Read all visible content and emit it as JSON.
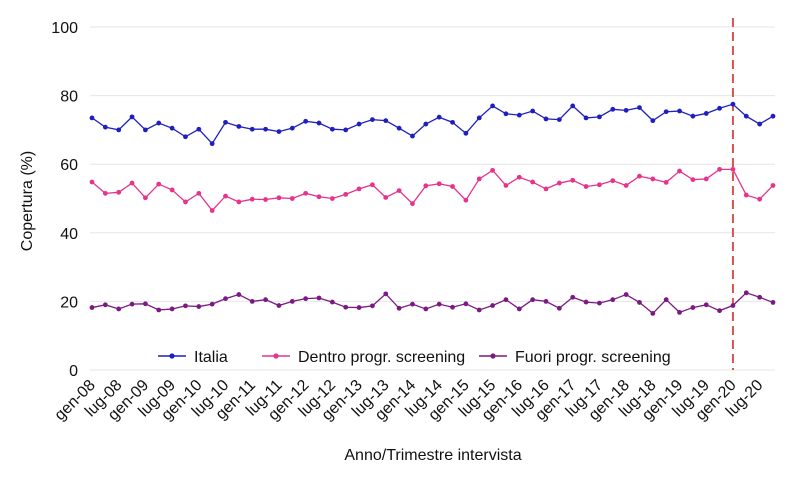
{
  "chart_data": {
    "type": "line",
    "xlabel": "Anno/Trimestre intervista",
    "ylabel": "Copertura (%)",
    "ylim": [
      0,
      100
    ],
    "yticks": [
      0,
      20,
      40,
      60,
      80,
      100
    ],
    "grid": "horizontal",
    "legend_position": "bottom-inside",
    "x_tick_labels": [
      "gen-08",
      "lug-08",
      "gen-09",
      "lug-09",
      "gen-10",
      "lug-10",
      "gen-11",
      "lug-11",
      "gen-12",
      "lug-12",
      "gen-13",
      "lug-13",
      "gen-14",
      "lug-14",
      "gen-15",
      "lug-15",
      "gen-16",
      "lug-16",
      "gen-17",
      "lug-17",
      "gen-18",
      "lug-18",
      "gen-19",
      "lug-19",
      "gen-20",
      "lug-20"
    ],
    "num_quarters": 52,
    "reference_line": {
      "at_label": "gen-20",
      "color": "#d9534f",
      "style": "dashed"
    },
    "series": [
      {
        "name": "Italia",
        "color": "#1f1fbf",
        "values": [
          73.5,
          70.8,
          70,
          73.8,
          70,
          72,
          70.5,
          68,
          70.2,
          66,
          72.2,
          71,
          70.2,
          70.2,
          69.5,
          70.5,
          72.5,
          72,
          70.2,
          70,
          71.7,
          73,
          72.7,
          70.5,
          68.2,
          71.7,
          73.7,
          72.2,
          69,
          73.5,
          77,
          74.7,
          74.3,
          75.5,
          73.2,
          73,
          77,
          73.5,
          73.8,
          76,
          75.7,
          76.5,
          72.7,
          75.3,
          75.5,
          74,
          74.8,
          76.3,
          77.5,
          74,
          71.7,
          74
        ]
      },
      {
        "name": "Dentro progr. screening",
        "color": "#e6338c",
        "values": [
          54.8,
          51.5,
          51.8,
          54.5,
          50.2,
          54.2,
          52.5,
          49,
          51.5,
          46.5,
          50.7,
          49,
          49.8,
          49.7,
          50.2,
          50,
          51.5,
          50.5,
          50,
          51.2,
          52.8,
          54,
          50.3,
          52.3,
          48.5,
          53.7,
          54.3,
          53.5,
          49.5,
          55.7,
          58.2,
          53.8,
          56.2,
          54.8,
          52.8,
          54.5,
          55.3,
          53.5,
          54,
          55.2,
          53.8,
          56.5,
          55.7,
          54.7,
          58,
          55.5,
          55.7,
          58.5,
          58.5,
          51,
          49.8,
          53.8
        ]
      },
      {
        "name": "Fuori progr. screening",
        "color": "#7a1a82",
        "values": [
          18.2,
          19,
          17.8,
          19.2,
          19.3,
          17.5,
          17.8,
          18.7,
          18.5,
          19.2,
          20.8,
          22,
          20,
          20.5,
          18.8,
          20,
          20.8,
          21,
          19.8,
          18.3,
          18.2,
          18.7,
          22.2,
          18,
          19.2,
          17.8,
          19.2,
          18.3,
          19.3,
          17.5,
          18.8,
          20.5,
          17.8,
          20.5,
          20,
          18,
          21.2,
          19.8,
          19.5,
          20.5,
          22,
          19.7,
          16.5,
          20.5,
          16.8,
          18.2,
          19,
          17.3,
          18.8,
          22.5,
          21.2,
          19.7
        ]
      }
    ]
  }
}
